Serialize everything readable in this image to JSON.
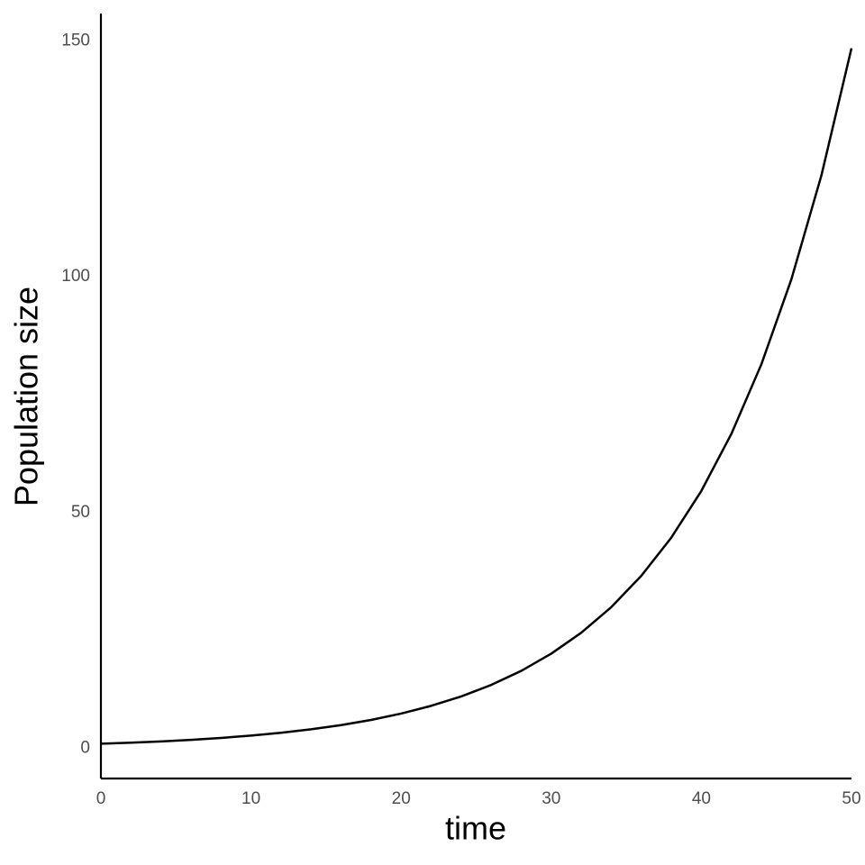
{
  "chart_data": {
    "type": "line",
    "x_label": "time",
    "y_label": "Population size",
    "x": [
      0,
      2,
      4,
      6,
      8,
      10,
      12,
      14,
      16,
      18,
      20,
      22,
      24,
      26,
      28,
      30,
      32,
      34,
      36,
      38,
      40,
      42,
      44,
      46,
      48,
      50
    ],
    "series": [
      {
        "color": "#000000",
        "values": [
          1.0,
          1.22,
          1.49,
          1.82,
          2.23,
          2.72,
          3.32,
          4.06,
          4.95,
          6.05,
          7.39,
          9.03,
          11.02,
          13.46,
          16.44,
          20.09,
          24.53,
          29.96,
          36.6,
          44.7,
          54.6,
          66.69,
          81.45,
          99.48,
          121.51,
          148.41
        ]
      }
    ],
    "xlim": [
      0,
      50
    ],
    "xticks": [
      0,
      10,
      20,
      30,
      40,
      50
    ],
    "ylim": [
      -6.37,
      155.78
    ],
    "yticks": [
      0,
      50,
      100,
      150
    ],
    "grid": false
  }
}
